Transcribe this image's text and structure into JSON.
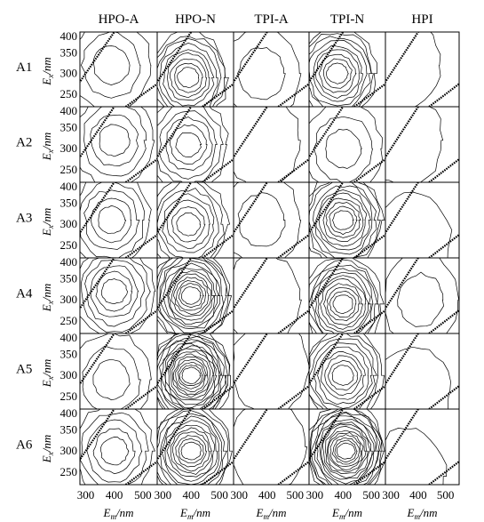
{
  "columns": [
    "HPO-A",
    "HPO-N",
    "TPI-A",
    "TPI-N",
    "HPI"
  ],
  "rows": [
    "A1",
    "A2",
    "A3",
    "A4",
    "A5",
    "A6"
  ],
  "axes": {
    "y_label_main": "E",
    "y_label_sub": "x",
    "y_label_unit": "/nm",
    "x_label_main": "E",
    "x_label_sub": "m",
    "x_label_unit": "/nm",
    "y_ticks": [
      "400",
      "350",
      "300",
      "250"
    ],
    "x_ticks": [
      "300",
      "400",
      "500"
    ]
  },
  "chart_data": {
    "type": "heatmap",
    "description_of_grid": "6 rows (A1-A6) x 5 columns of EEM contour panels",
    "columns": [
      "HPO-A",
      "HPO-N",
      "TPI-A",
      "TPI-N",
      "HPI"
    ],
    "rows": [
      "A1",
      "A2",
      "A3",
      "A4",
      "A5",
      "A6"
    ],
    "x_axis": {
      "label": "Em/nm",
      "ticks": [
        300,
        400,
        500
      ],
      "range": [
        280,
        550
      ]
    },
    "y_axis": {
      "label": "Ex/nm",
      "ticks": [
        400,
        350,
        300,
        250
      ],
      "range": [
        220,
        400
      ]
    },
    "peaks": [
      [
        {
          "em": 390,
          "ex": 320,
          "n": 3
        },
        {
          "em": 390,
          "ex": 290,
          "n": 9
        },
        {
          "em": 380,
          "ex": 300,
          "n": 2
        },
        {
          "em": 380,
          "ex": 300,
          "n": 9
        },
        {
          "em": 340,
          "ex": 320,
          "n": 1
        }
      ],
      [
        {
          "em": 400,
          "ex": 320,
          "n": 4
        },
        {
          "em": 390,
          "ex": 310,
          "n": 6
        },
        {
          "em": 380,
          "ex": 320,
          "n": 1
        },
        {
          "em": 400,
          "ex": 300,
          "n": 3
        },
        {
          "em": 350,
          "ex": 320,
          "n": 1
        }
      ],
      [
        {
          "em": 390,
          "ex": 310,
          "n": 5
        },
        {
          "em": 390,
          "ex": 300,
          "n": 7
        },
        {
          "em": 380,
          "ex": 310,
          "n": 2
        },
        {
          "em": 400,
          "ex": 310,
          "n": 10
        },
        {
          "em": 380,
          "ex": 260,
          "n": 1
        }
      ],
      [
        {
          "em": 400,
          "ex": 320,
          "n": 6
        },
        {
          "em": 400,
          "ex": 310,
          "n": 13
        },
        {
          "em": 380,
          "ex": 300,
          "n": 1
        },
        {
          "em": 400,
          "ex": 290,
          "n": 11
        },
        {
          "em": 410,
          "ex": 300,
          "n": 2
        }
      ],
      [
        {
          "em": 390,
          "ex": 290,
          "n": 3
        },
        {
          "em": 400,
          "ex": 300,
          "n": 16
        },
        {
          "em": 410,
          "ex": 320,
          "n": 1
        },
        {
          "em": 400,
          "ex": 300,
          "n": 9
        },
        {
          "em": 380,
          "ex": 260,
          "n": 1
        }
      ],
      [
        {
          "em": 400,
          "ex": 300,
          "n": 5
        },
        {
          "em": 400,
          "ex": 300,
          "n": 12
        },
        {
          "em": 400,
          "ex": 310,
          "n": 1
        },
        {
          "em": 410,
          "ex": 300,
          "n": 16
        },
        {
          "em": 360,
          "ex": 240,
          "n": 1
        }
      ]
    ]
  }
}
